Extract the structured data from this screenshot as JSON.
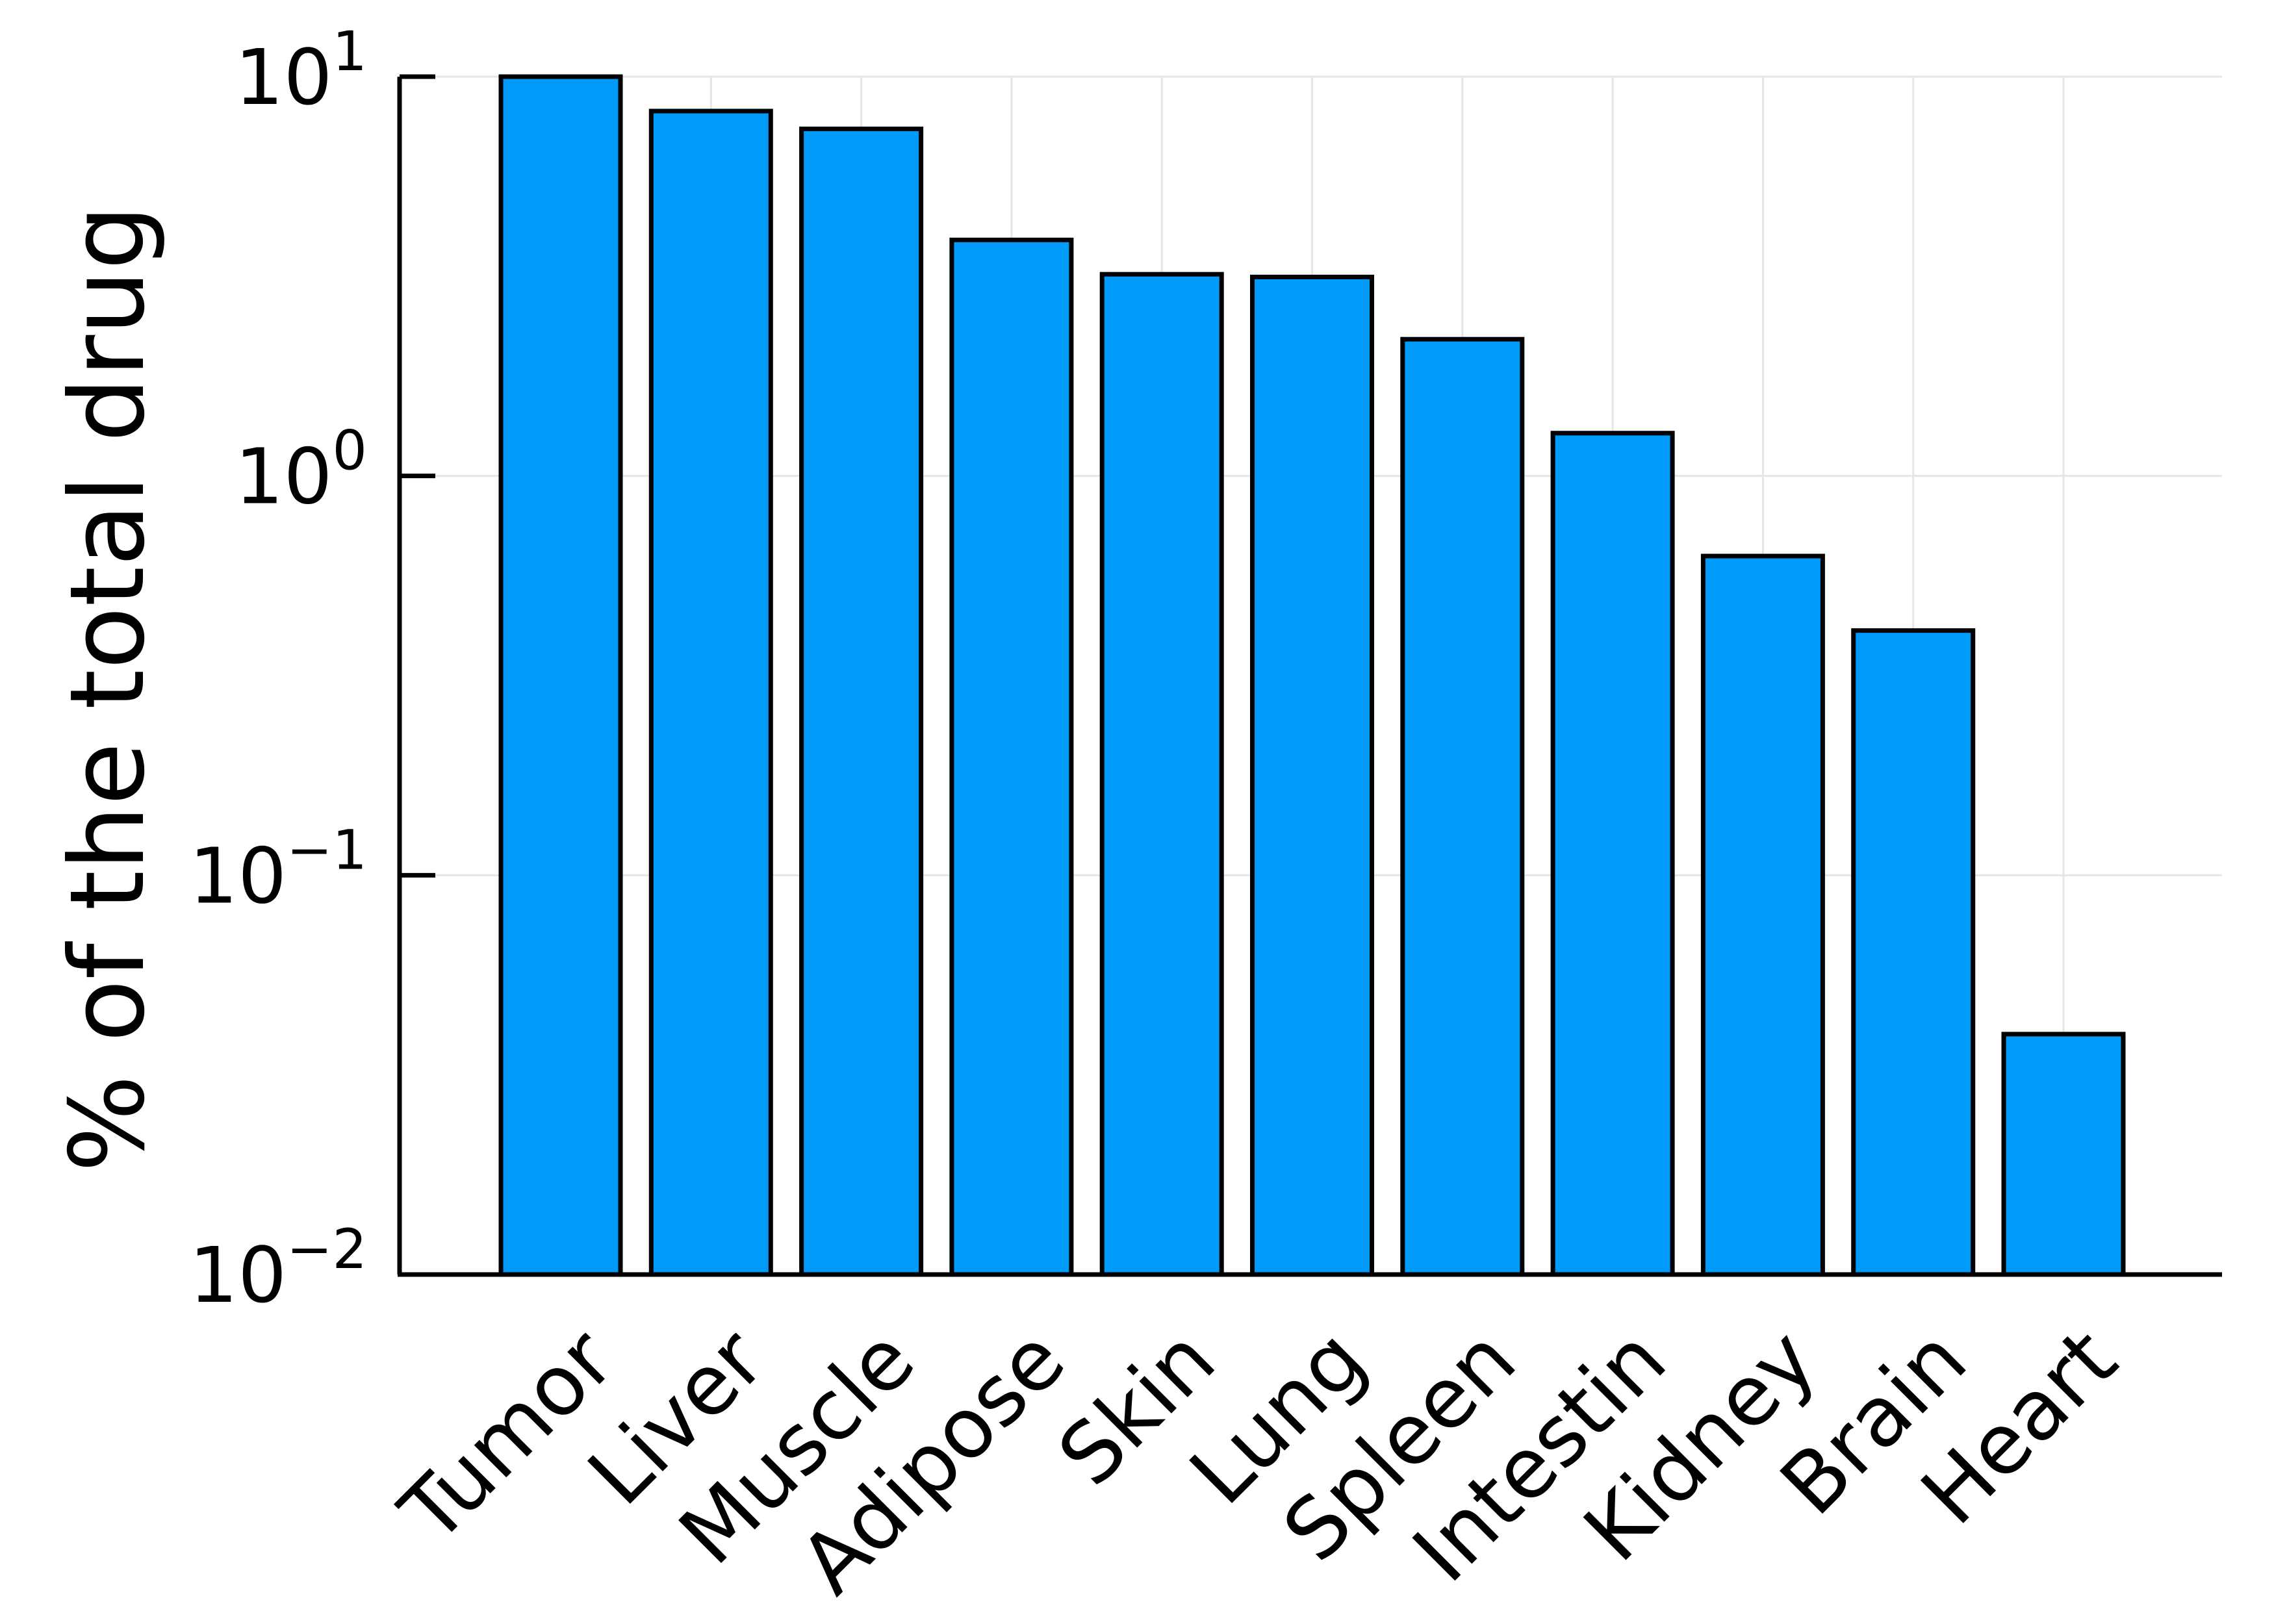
{
  "chart_data": {
    "type": "bar",
    "categories": [
      "Tumor",
      "Liver",
      "Muscle",
      "Adipose",
      "Skin",
      "Lung",
      "Spleen",
      "Intestin",
      "Kidney",
      "Brain",
      "Heart"
    ],
    "values": [
      10.2,
      8.2,
      7.4,
      3.9,
      3.2,
      3.15,
      2.2,
      1.28,
      0.63,
      0.41,
      0.04
    ],
    "title": "",
    "xlabel": "",
    "ylabel": "% of the total drug",
    "yscale": "log10",
    "ylim": [
      0.01,
      10
    ],
    "yticks": [
      {
        "value": 0.01,
        "base": "10",
        "exp": "−2"
      },
      {
        "value": 0.1,
        "base": "10",
        "exp": "−1"
      },
      {
        "value": 1,
        "base": "10",
        "exp": "0"
      },
      {
        "value": 10,
        "base": "10",
        "exp": "1"
      }
    ],
    "grid": true,
    "colors": {
      "bar": "#009af9",
      "outline": "#000000",
      "grid": "#e6e6e6"
    }
  }
}
